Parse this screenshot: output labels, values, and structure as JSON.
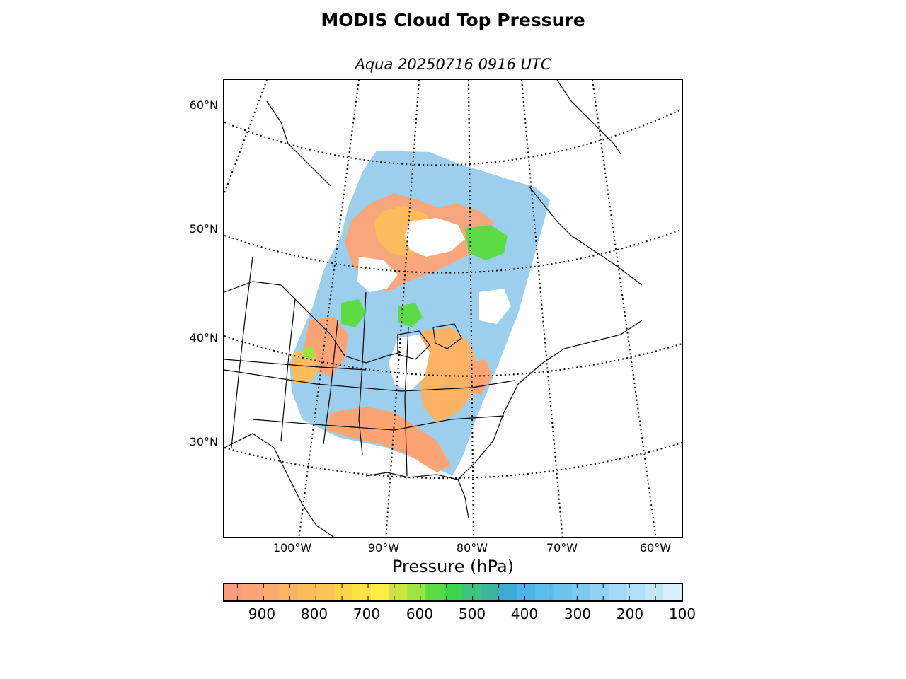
{
  "header": {
    "title": "MODIS Cloud Top Pressure",
    "subtitle": "Aqua 20250716 0916 UTC"
  },
  "map": {
    "projection": "lambert-conformal",
    "latitude_labels": [
      "60°N",
      "50°N",
      "40°N",
      "30°N"
    ],
    "longitude_labels": [
      "100°W",
      "90°W",
      "80°W",
      "70°W",
      "60°W"
    ],
    "graticule_style": "dotted",
    "coastline_color": "#000000"
  },
  "colorbar": {
    "title": "Pressure (hPa)",
    "tick_labels": [
      "900",
      "800",
      "700",
      "600",
      "500",
      "400",
      "300",
      "200",
      "100"
    ],
    "range": [
      975,
      100
    ],
    "colors": [
      "#fc9c7c",
      "#fca474",
      "#fcac6c",
      "#fcb464",
      "#fcbc5c",
      "#fcc454",
      "#fcd44c",
      "#fce444",
      "#fcec44",
      "#cce444",
      "#9ce444",
      "#5cdc44",
      "#3cd44c",
      "#3cc47c",
      "#3cb49c",
      "#3cacd4",
      "#4cb4ec",
      "#5cbcec",
      "#6cc4ec",
      "#7ccaf0",
      "#8ed2f4",
      "#a0daf6",
      "#b2e0f8",
      "#c4e8fa",
      "#d4eefc"
    ]
  }
}
